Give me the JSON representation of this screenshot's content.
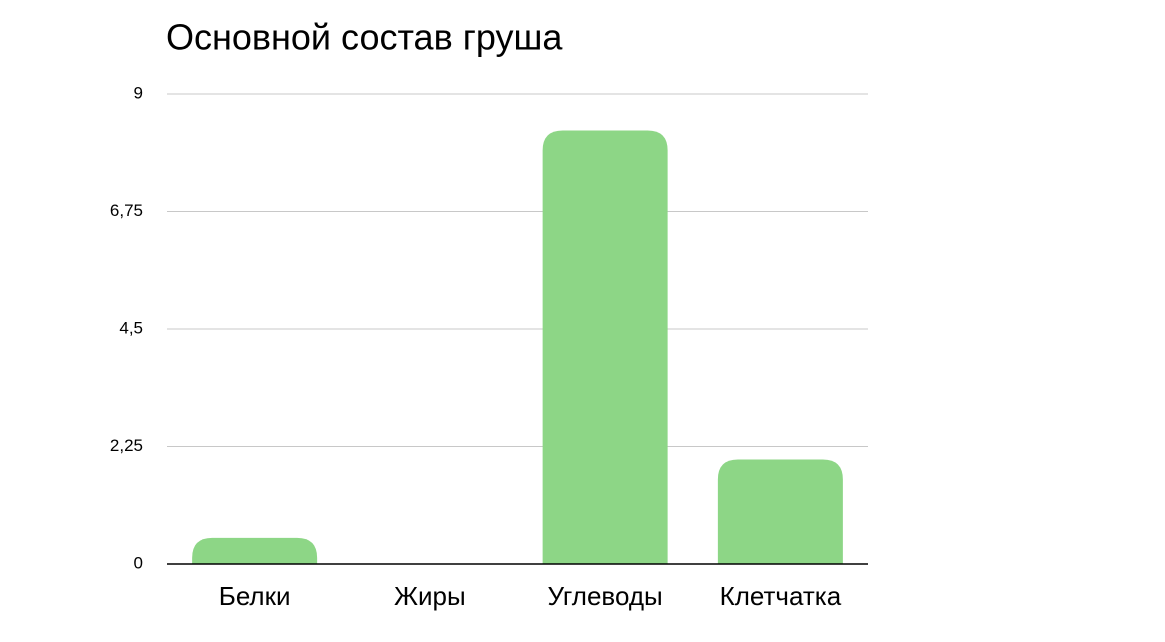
{
  "chart_data": {
    "type": "bar",
    "title": "Основной состав груша",
    "categories": [
      "Белки",
      "Жиры",
      "Углеводы",
      "Клетчатка"
    ],
    "values": [
      0.5,
      0,
      8.3,
      2
    ],
    "color": "#8dd686",
    "ylim": [
      0,
      9
    ],
    "yticks": [
      0,
      {
        "value": 2.25,
        "label": "2,25"
      },
      {
        "value": 4.5,
        "label": "4,5"
      },
      {
        "value": 6.75,
        "label": "6,75"
      },
      9
    ],
    "grid": true
  }
}
